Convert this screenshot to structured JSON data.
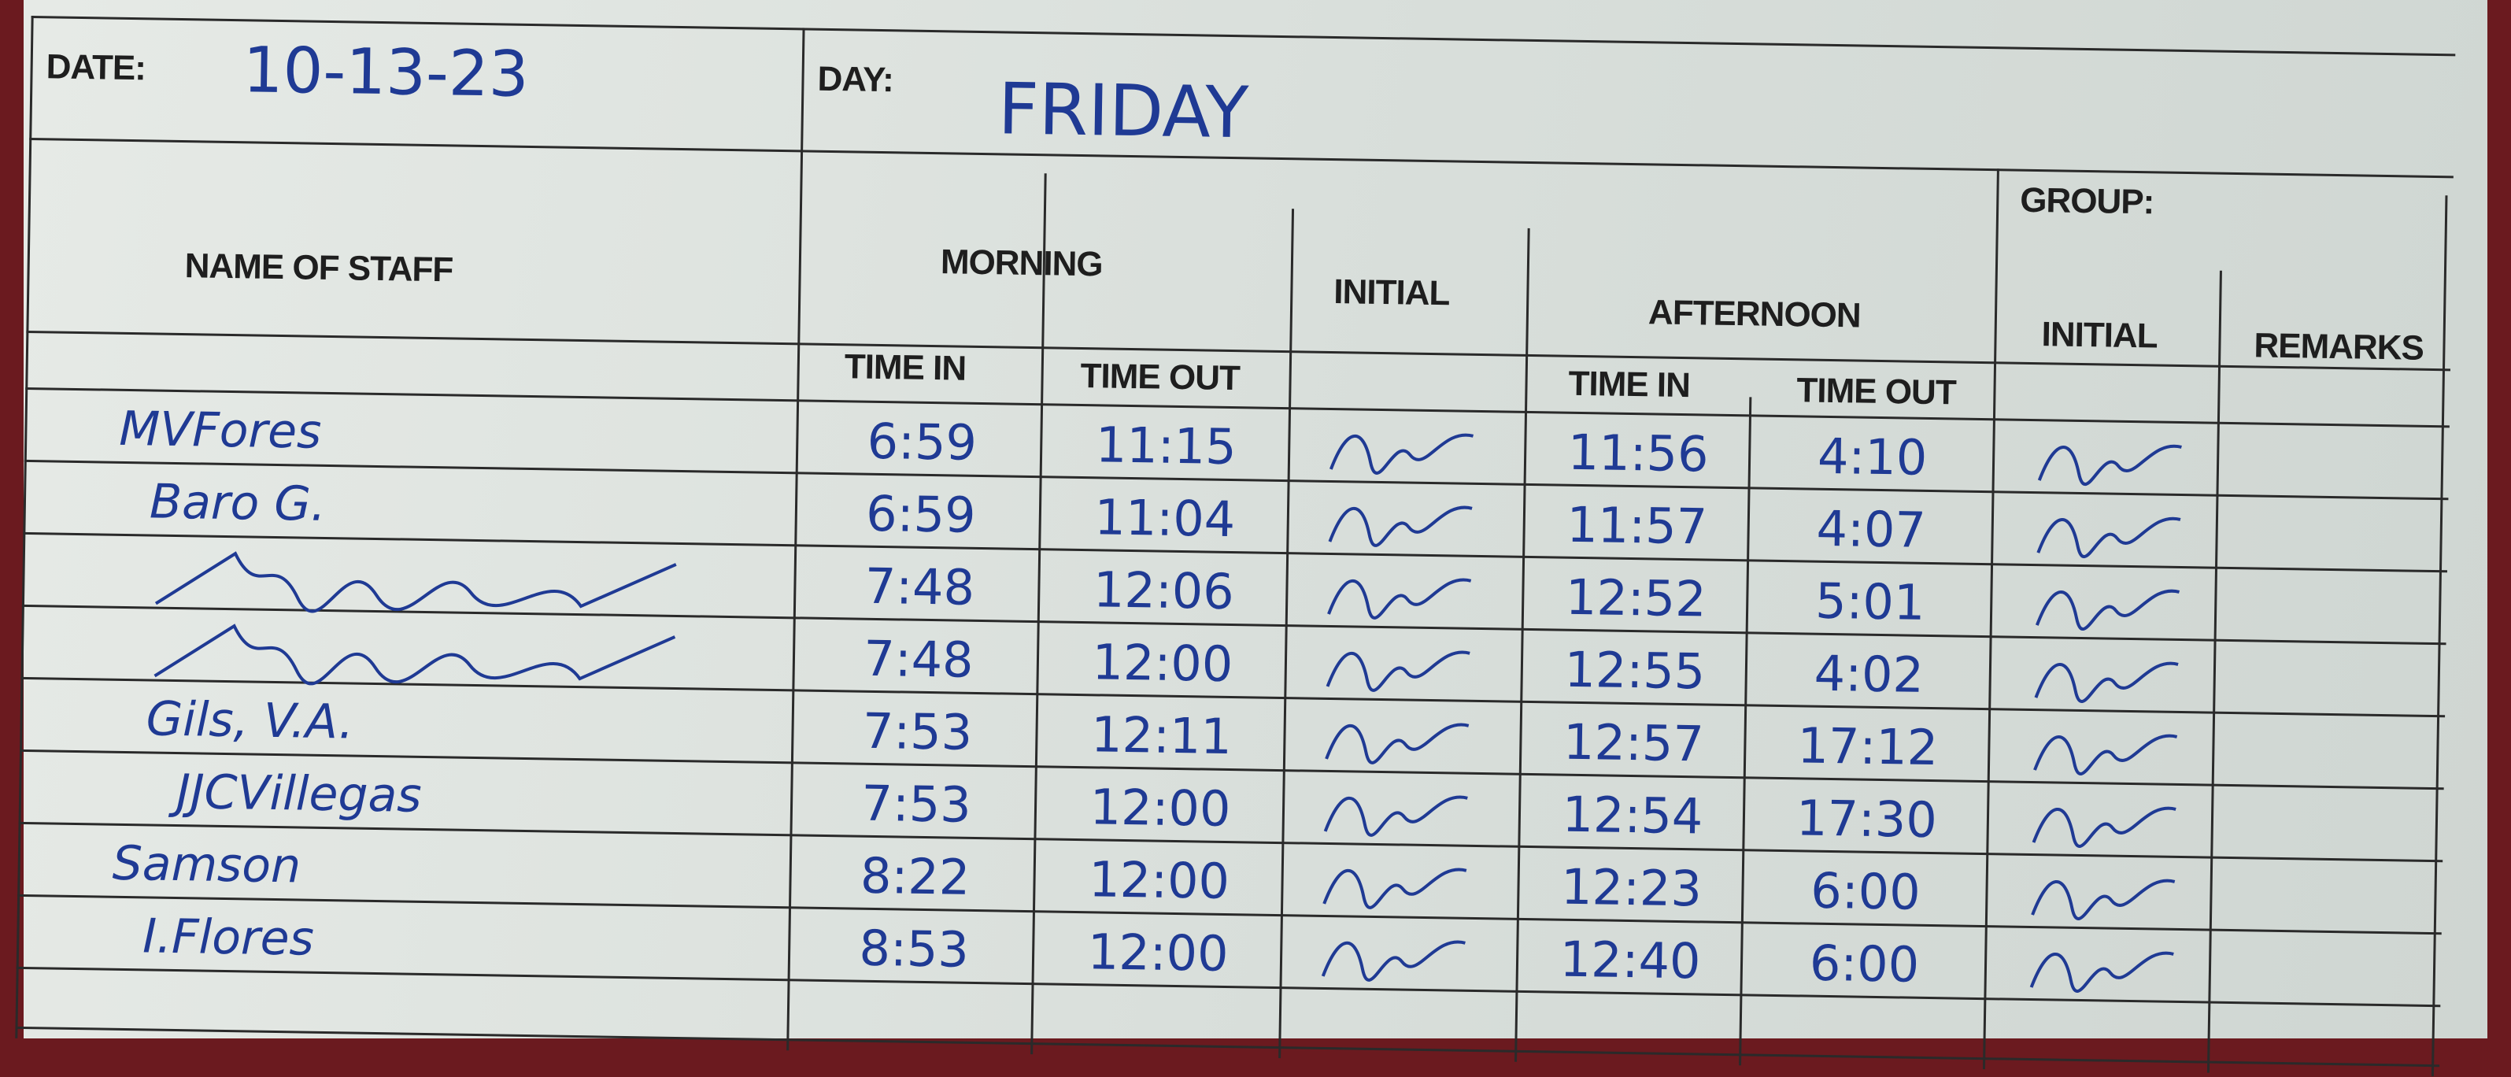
{
  "header": {
    "date_label": "DATE:",
    "date_value": "10-13-23",
    "day_label": "DAY:",
    "day_value": "FRIDAY",
    "group_label": "GROUP:",
    "group_value": ""
  },
  "columns": {
    "name": "NAME OF STAFF",
    "morning": "MORNING",
    "initial_1": "INITIAL",
    "afternoon": "AFTERNOON",
    "initial_2": "INITIAL",
    "remarks": "REMARKS",
    "time_in": "TIME IN",
    "time_out": "TIME OUT"
  },
  "ink_color": "#1f3a94",
  "rows": [
    {
      "name": "MVFores",
      "am_in": "6:59",
      "am_out": "11:15",
      "pm_in": "11:56",
      "pm_out": "4:10",
      "initial": "signature"
    },
    {
      "name": "Baro G.",
      "am_in": "6:59",
      "am_out": "11:04",
      "pm_in": "11:57",
      "pm_out": "4:07",
      "initial": "signature"
    },
    {
      "name": "",
      "am_in": "7:48",
      "am_out": "12:06",
      "pm_in": "12:52",
      "pm_out": "5:01",
      "initial": "signature"
    },
    {
      "name": "",
      "am_in": "7:48",
      "am_out": "12:00",
      "pm_in": "12:55",
      "pm_out": "4:02",
      "initial": "signature"
    },
    {
      "name": "Gils, V.A.",
      "am_in": "7:53",
      "am_out": "12:11",
      "pm_in": "12:57",
      "pm_out": "17:12",
      "initial": "signature"
    },
    {
      "name": "JJCVillegas",
      "am_in": "7:53",
      "am_out": "12:00",
      "pm_in": "12:54",
      "pm_out": "17:30",
      "initial": "signature"
    },
    {
      "name": "Samson",
      "am_in": "8:22",
      "am_out": "12:00",
      "pm_in": "12:23",
      "pm_out": "6:00",
      "initial": "signature"
    },
    {
      "name": "I.Flores",
      "am_in": "8:53",
      "am_out": "12:00",
      "pm_in": "12:40",
      "pm_out": "6:00",
      "initial": "signature"
    }
  ]
}
